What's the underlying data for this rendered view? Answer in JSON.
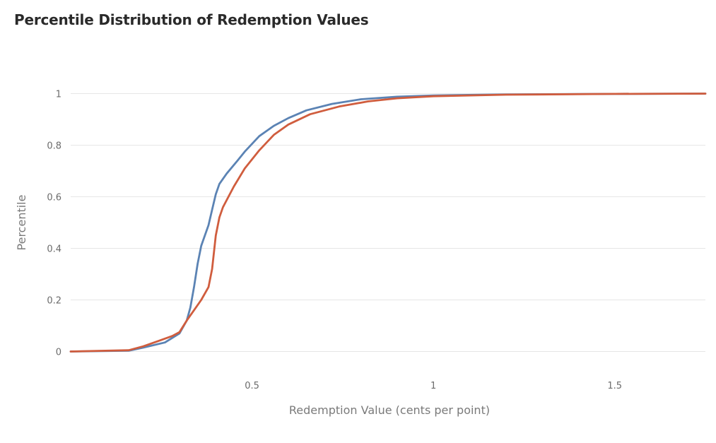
{
  "title": "Percentile Distribution of Redemption Values",
  "chart_data": {
    "type": "line",
    "title": "Percentile Distribution of Redemption Values",
    "xlabel": "Redemption Value (cents per point)",
    "ylabel": "Percentile",
    "xlim": [
      0.0,
      1.75
    ],
    "ylim": [
      -0.1,
      1.1
    ],
    "x_ticks": [
      0.5,
      1,
      1.5
    ],
    "x_tick_labels": [
      "0.5",
      "1",
      "1.5"
    ],
    "y_ticks": [
      0,
      0.2,
      0.4,
      0.6,
      0.8,
      1
    ],
    "y_tick_labels": [
      "0",
      "0.2",
      "0.4",
      "0.6",
      "0.8",
      "1"
    ],
    "grid": true,
    "series": [
      {
        "color": "#5b83b4",
        "x": [
          0,
          0.16,
          0.2,
          0.26,
          0.3,
          0.32,
          0.33,
          0.34,
          0.35,
          0.36,
          0.38,
          0.39,
          0.4,
          0.41,
          0.43,
          0.46,
          0.48,
          0.52,
          0.56,
          0.6,
          0.65,
          0.72,
          0.8,
          0.9,
          1.0,
          1.2,
          1.5,
          1.75
        ],
        "y": [
          0,
          0.003,
          0.015,
          0.035,
          0.07,
          0.12,
          0.17,
          0.25,
          0.34,
          0.41,
          0.49,
          0.55,
          0.61,
          0.65,
          0.69,
          0.74,
          0.775,
          0.835,
          0.875,
          0.905,
          0.935,
          0.96,
          0.978,
          0.988,
          0.993,
          0.997,
          0.999,
          1.0
        ]
      },
      {
        "color": "#d05d3e",
        "x": [
          0,
          0.16,
          0.2,
          0.24,
          0.28,
          0.3,
          0.32,
          0.34,
          0.36,
          0.38,
          0.39,
          0.4,
          0.41,
          0.42,
          0.45,
          0.48,
          0.52,
          0.56,
          0.6,
          0.66,
          0.74,
          0.82,
          0.9,
          1.0,
          1.2,
          1.5,
          1.75
        ],
        "y": [
          0,
          0.005,
          0.02,
          0.04,
          0.06,
          0.075,
          0.12,
          0.16,
          0.2,
          0.25,
          0.32,
          0.45,
          0.52,
          0.56,
          0.64,
          0.71,
          0.78,
          0.84,
          0.88,
          0.92,
          0.95,
          0.97,
          0.982,
          0.99,
          0.996,
          0.999,
          1.0
        ]
      }
    ]
  }
}
